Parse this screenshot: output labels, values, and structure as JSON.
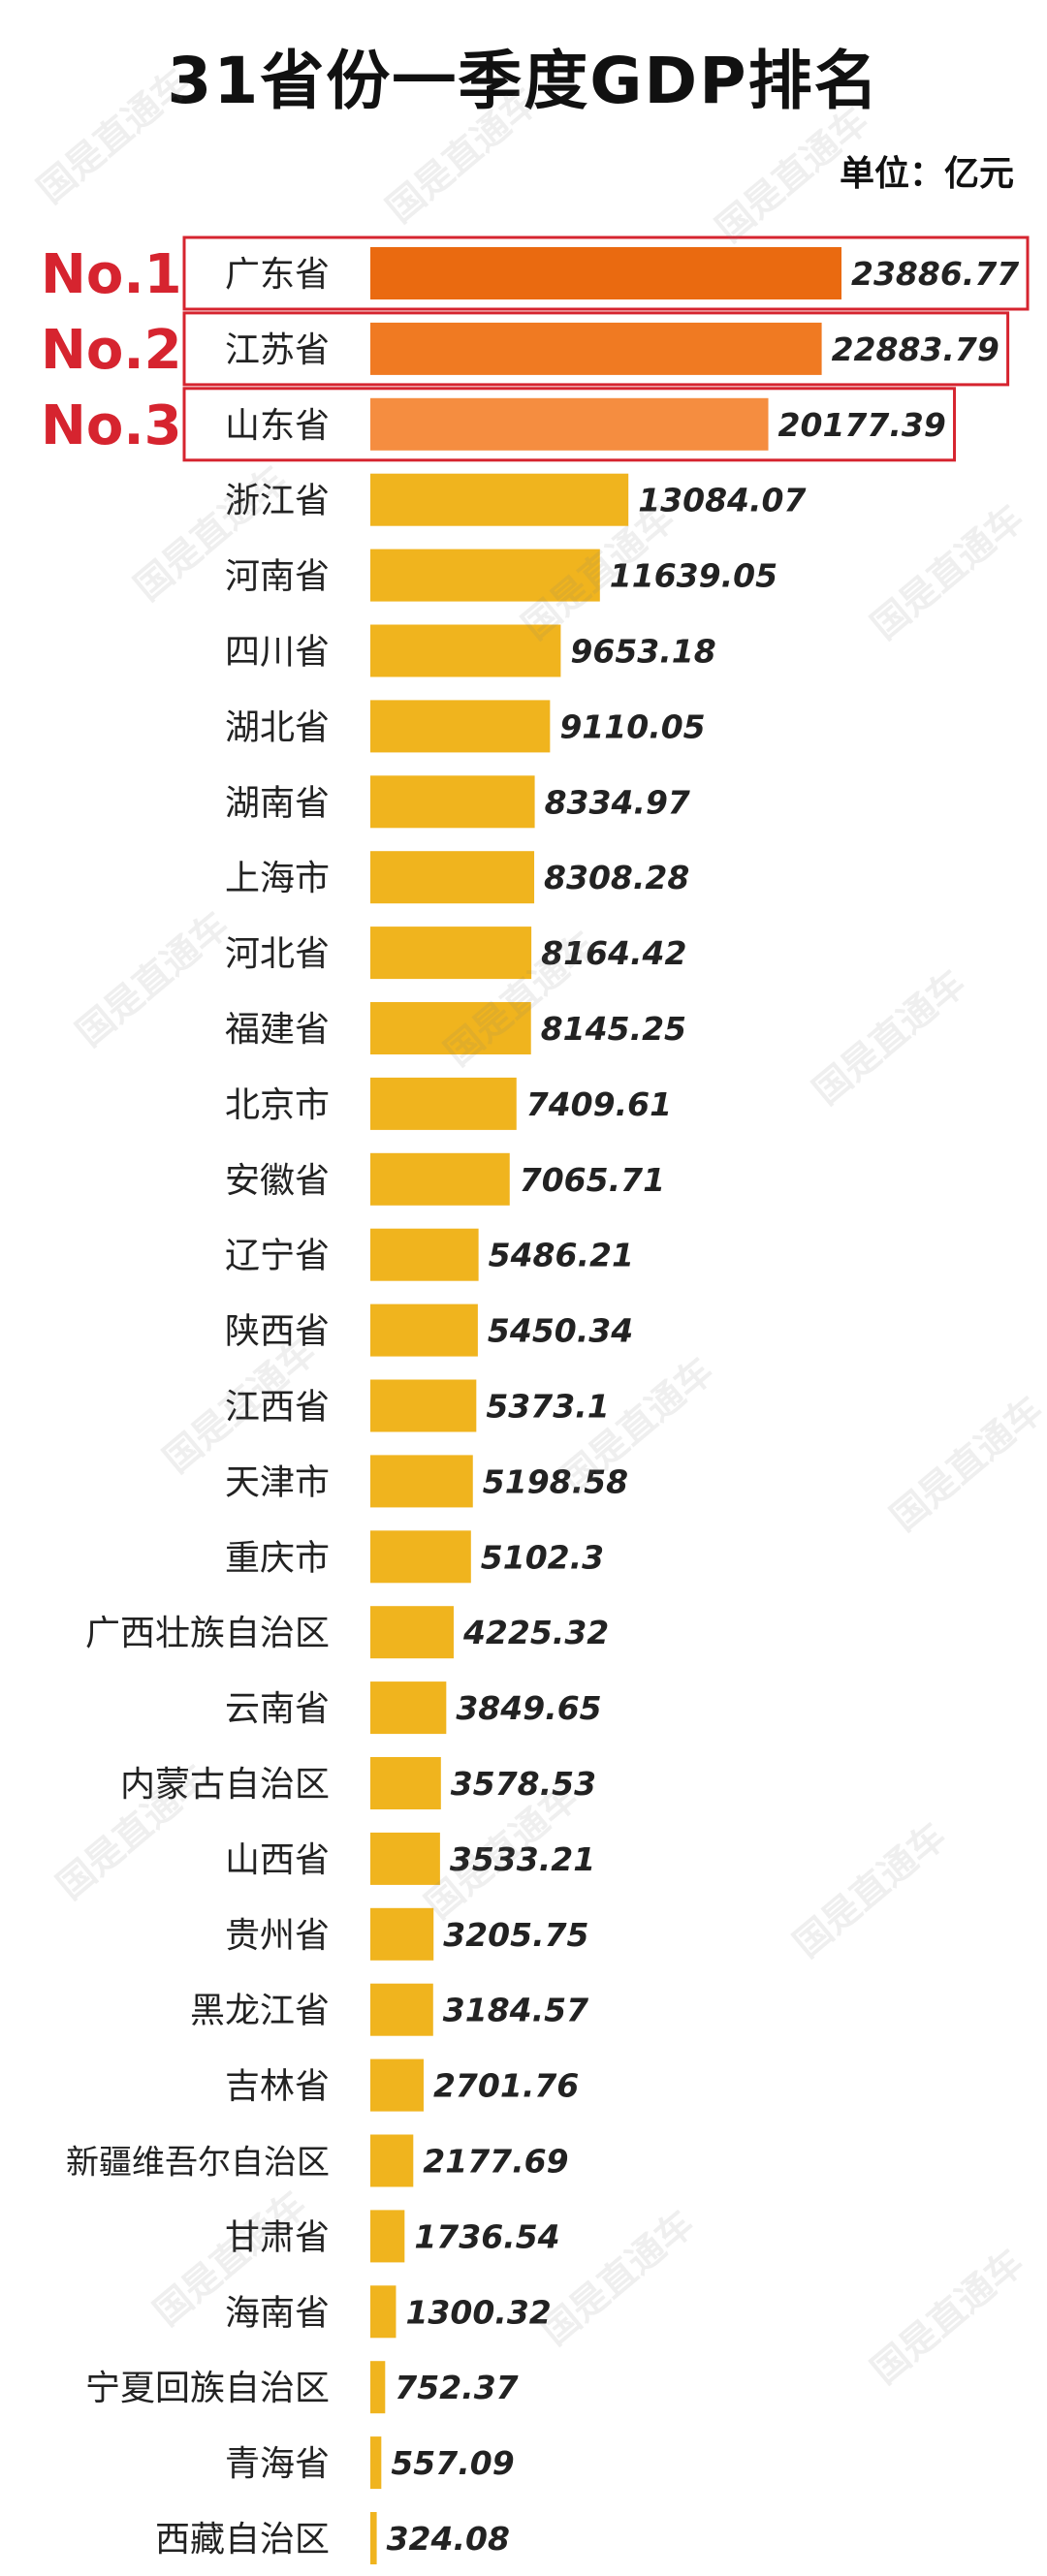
{
  "header": {
    "title": "31省份一季度GDP排名",
    "unit": "单位：亿元"
  },
  "watermark": "国是直通车",
  "colors": {
    "top1": "#ea6a10",
    "top2": "#f07a22",
    "top3": "#f58d40",
    "bar": "#f0b41e",
    "highlight_border": "#d6242f"
  },
  "chart_data": {
    "type": "bar",
    "orientation": "horizontal",
    "title": "31省份一季度GDP排名",
    "unit": "单位：亿元",
    "rank_labels": [
      "No.1",
      "No.2",
      "No.3"
    ],
    "categories": [
      "广东省",
      "江苏省",
      "山东省",
      "浙江省",
      "河南省",
      "四川省",
      "湖北省",
      "湖南省",
      "上海市",
      "河北省",
      "福建省",
      "北京市",
      "安徽省",
      "辽宁省",
      "陕西省",
      "江西省",
      "天津市",
      "重庆市",
      "广西壮族自治区",
      "云南省",
      "内蒙古自治区",
      "山西省",
      "贵州省",
      "黑龙江省",
      "吉林省",
      "新疆维吾尔自治区",
      "甘肃省",
      "海南省",
      "宁夏回族自治区",
      "青海省",
      "西藏自治区"
    ],
    "values": [
      23886.77,
      22883.79,
      20177.39,
      13084.07,
      11639.05,
      9653.18,
      9110.05,
      8334.97,
      8308.28,
      8164.42,
      8145.25,
      7409.61,
      7065.71,
      5486.21,
      5450.34,
      5373.1,
      5198.58,
      5102.3,
      4225.32,
      3849.65,
      3578.53,
      3533.21,
      3205.75,
      3184.57,
      2701.76,
      2177.69,
      1736.54,
      1300.32,
      752.37,
      557.09,
      324.08
    ],
    "value_labels": [
      "23886.77",
      "22883.79",
      "20177.39",
      "13084.07",
      "11639.05",
      "9653.18",
      "9110.05",
      "8334.97",
      "8308.28",
      "8164.42",
      "8145.25",
      "7409.61",
      "7065.71",
      "5486.21",
      "5450.34",
      "5373.1",
      "5198.58",
      "5102.3",
      "4225.32",
      "3849.65",
      "3578.53",
      "3533.21",
      "3205.75",
      "3184.57",
      "2701.76",
      "2177.69",
      "1736.54",
      "1300.32",
      "752.37",
      "557.09",
      "324.08"
    ],
    "xlim": [
      0,
      23886.77
    ],
    "grid": false,
    "legend": "none"
  }
}
